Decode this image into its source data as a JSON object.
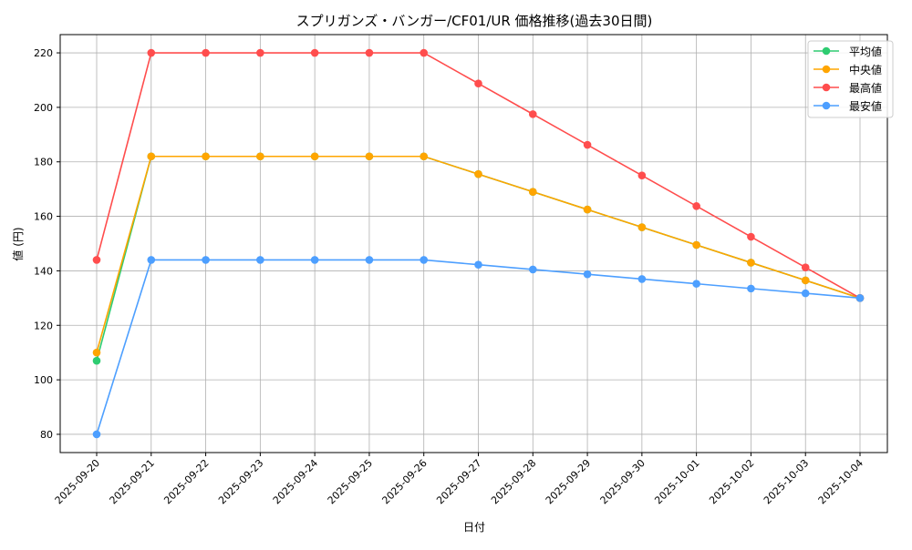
{
  "chart_data": {
    "type": "line",
    "title": "スプリガンズ・バンガー/CF01/UR 価格推移(過去30日間)",
    "xlabel": "日付",
    "ylabel": "値 (円)",
    "ylim": [
      73.3,
      226.7
    ],
    "yticks": [
      80,
      100,
      120,
      140,
      160,
      180,
      200,
      220
    ],
    "grid": true,
    "legend_position": "top-right",
    "x": [
      "2025-09-20",
      "2025-09-21",
      "2025-09-22",
      "2025-09-23",
      "2025-09-24",
      "2025-09-25",
      "2025-09-26",
      "2025-09-27",
      "2025-09-28",
      "2025-09-29",
      "2025-09-30",
      "2025-10-01",
      "2025-10-02",
      "2025-10-03",
      "2025-10-04"
    ],
    "series": [
      {
        "name": "平均値",
        "color": "#2ecc71",
        "values": [
          107,
          182,
          182,
          182,
          182,
          182,
          182,
          175.5,
          169,
          162.5,
          156,
          149.5,
          143,
          136.5,
          130
        ]
      },
      {
        "name": "中央値",
        "color": "#ffa500",
        "values": [
          110,
          182,
          182,
          182,
          182,
          182,
          182,
          175.5,
          169,
          162.5,
          156,
          149.5,
          143,
          136.5,
          130
        ]
      },
      {
        "name": "最高値",
        "color": "#ff4d4d",
        "values": [
          144,
          220,
          220,
          220,
          220,
          220,
          220,
          208.75,
          197.5,
          186.25,
          175,
          163.75,
          152.5,
          141.25,
          130
        ]
      },
      {
        "name": "最安値",
        "color": "#4d9fff",
        "values": [
          80,
          144,
          144,
          144,
          144,
          144,
          144,
          142.25,
          140.5,
          138.75,
          137,
          135.25,
          133.5,
          131.75,
          130
        ]
      }
    ]
  }
}
